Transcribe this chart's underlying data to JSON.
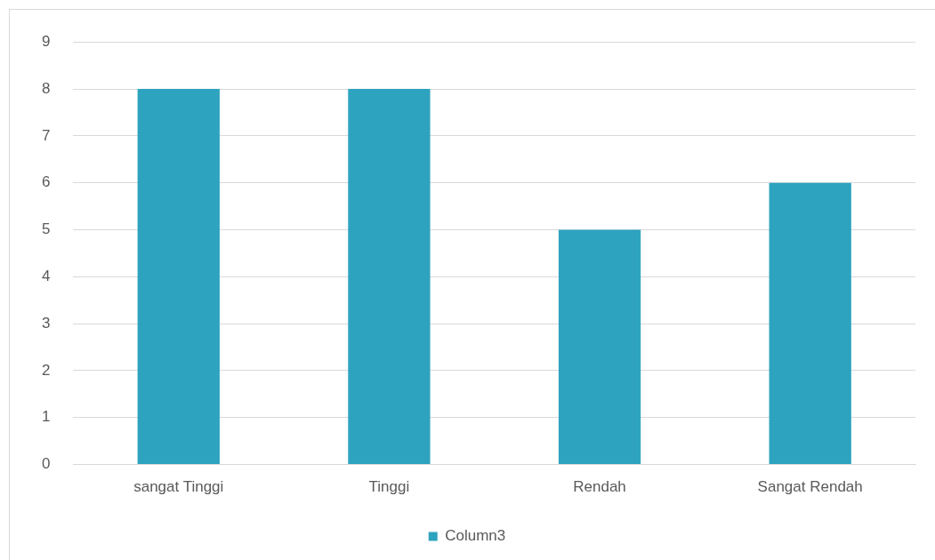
{
  "chart_data": {
    "type": "bar",
    "categories": [
      "sangat Tinggi",
      "Tinggi",
      "Rendah",
      "Sangat Rendah"
    ],
    "series": [
      {
        "name": "Column3",
        "color": "#2ea3bf",
        "values": [
          8,
          8,
          5,
          6
        ]
      }
    ],
    "ylim": [
      0,
      9
    ],
    "yticks": [
      0,
      1,
      2,
      3,
      4,
      5,
      6,
      7,
      8,
      9
    ],
    "grid": "y",
    "legend": "bottom"
  }
}
